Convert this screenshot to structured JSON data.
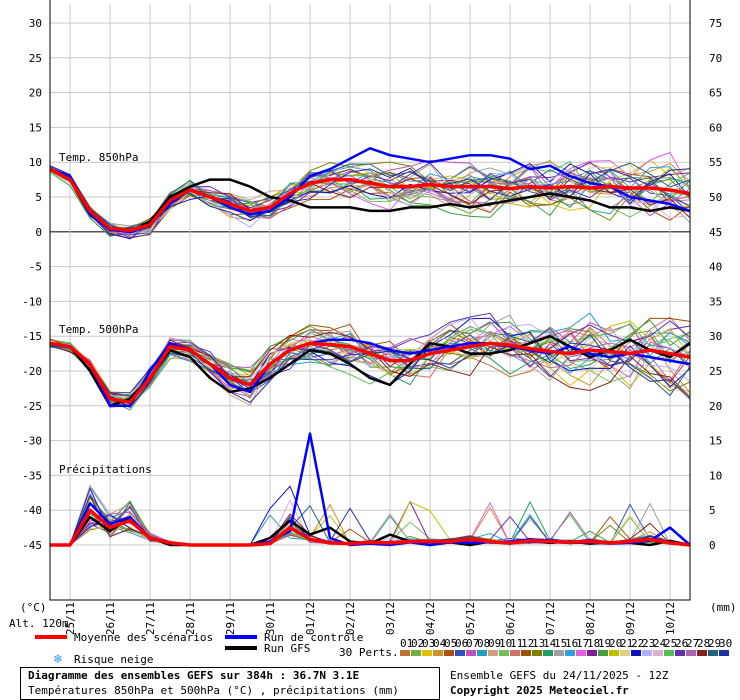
{
  "chart_data": {
    "type": "line",
    "title": "Diagramme des ensembles GEFS sur 384h : 36.7N 3.1E",
    "subtitle": "Températures 850hPa et 500hPa (°C) , précipitations (mm)",
    "left_axis": {
      "unit": "(°C)",
      "ticks": [
        30,
        25,
        20,
        15,
        10,
        5,
        0,
        -5,
        -10,
        -15,
        -20,
        -25,
        -30,
        -35,
        -40,
        -45
      ]
    },
    "right_axis": {
      "unit": "(mm)",
      "ticks": [
        75,
        70,
        65,
        60,
        55,
        50,
        45,
        40,
        35,
        30,
        25,
        20,
        15,
        10,
        5,
        0
      ]
    },
    "dates": [
      "25/11",
      "26/11",
      "27/11",
      "28/11",
      "29/11",
      "30/11",
      "01/12",
      "02/12",
      "03/12",
      "04/12",
      "05/12",
      "06/12",
      "07/12",
      "08/12",
      "09/12",
      "10/12"
    ],
    "altitude": "Alt. 120m",
    "panel_labels": {
      "t850": "Temp. 850hPa",
      "t500": "Temp. 500hPa",
      "precip": "Précipitations"
    },
    "x_hours": [
      0,
      12,
      24,
      36,
      48,
      60,
      72,
      84,
      96,
      108,
      120,
      132,
      144,
      156,
      168,
      180,
      192,
      204,
      216,
      228,
      240,
      252,
      264,
      276,
      288,
      300,
      312,
      324,
      336,
      348,
      360,
      372,
      384
    ],
    "series": [
      {
        "name": "Moyenne des scénarios",
        "t850": [
          9,
          7.5,
          3,
          0.5,
          0.2,
          1,
          4.5,
          6,
          5,
          4,
          3,
          3.5,
          5.5,
          7,
          7.5,
          7.5,
          7,
          6.5,
          6.5,
          6.8,
          6.5,
          6.5,
          6.5,
          6.2,
          6.5,
          6.3,
          6.5,
          6.3,
          6.5,
          6.3,
          6.3,
          6,
          5.5
        ],
        "t500": [
          -16,
          -16.5,
          -19,
          -24,
          -24.5,
          -21,
          -16.5,
          -17,
          -19,
          -21,
          -22,
          -19,
          -17,
          -16,
          -16.2,
          -16.5,
          -17.5,
          -18.5,
          -18.5,
          -17.5,
          -17,
          -16.5,
          -16,
          -16.3,
          -16.8,
          -17.2,
          -17.5,
          -17,
          -17.2,
          -17.5,
          -17,
          -17.5,
          -18
        ],
        "precip": [
          0,
          0,
          5,
          2.5,
          3.5,
          1,
          0.3,
          0,
          0,
          0,
          0,
          0.2,
          2.5,
          0.8,
          0.3,
          0.2,
          0.4,
          0.3,
          0.5,
          0.5,
          0.5,
          0.8,
          0.5,
          0.3,
          0.6,
          0.5,
          0.4,
          0.5,
          0.3,
          0.5,
          0.8,
          0.3,
          0
        ]
      },
      {
        "name": "Run de contrôle",
        "t850": [
          9,
          8,
          2.5,
          0.3,
          0,
          1,
          4,
          6,
          5,
          3.5,
          2.5,
          3,
          5,
          8,
          9,
          10.5,
          12,
          11,
          10.5,
          10,
          10.5,
          11,
          11,
          10.5,
          9,
          9.5,
          8,
          7,
          6.5,
          5,
          4.5,
          4,
          3
        ],
        "t500": [
          -16,
          -16.5,
          -19,
          -25,
          -25,
          -20,
          -16,
          -17,
          -19,
          -22,
          -23,
          -19,
          -17,
          -16,
          -15.5,
          -15.5,
          -16,
          -17,
          -17.5,
          -17,
          -16.5,
          -16,
          -16,
          -16.5,
          -17,
          -17.5,
          -16.5,
          -17.5,
          -18,
          -17.5,
          -18,
          -18.5,
          -19
        ],
        "precip": [
          0,
          0,
          6,
          3,
          4,
          1,
          0.2,
          0,
          0,
          0,
          0,
          0.5,
          2,
          16,
          1,
          0,
          0.2,
          0,
          0.4,
          0,
          0.4,
          0.3,
          0.4,
          0.5,
          0.8,
          0.6,
          0.3,
          0.4,
          0.2,
          0.3,
          0.6,
          2.5,
          0
        ]
      },
      {
        "name": "Run GFS",
        "t850": [
          9,
          7.5,
          2.5,
          0.5,
          0,
          1.5,
          5,
          6.5,
          7.5,
          7.5,
          6.5,
          5,
          4.5,
          3.5,
          3.5,
          3.5,
          3,
          3,
          3.5,
          3.5,
          4,
          3.5,
          4,
          4.5,
          5,
          5.5,
          5,
          4.5,
          3.5,
          3.5,
          3,
          3.5,
          3
        ],
        "t500": [
          -16,
          -16.5,
          -20,
          -25,
          -24,
          -21,
          -17,
          -18,
          -21,
          -23,
          -22.5,
          -21,
          -19,
          -17,
          -17.5,
          -19,
          -21,
          -22,
          -19,
          -16,
          -16.5,
          -17.5,
          -17.5,
          -17,
          -16,
          -15,
          -16.5,
          -18,
          -17,
          -15.5,
          -17,
          -18,
          -16
        ],
        "precip": [
          0,
          0,
          4,
          2,
          4,
          1,
          0,
          0,
          0,
          0,
          0,
          1,
          3.5,
          1.5,
          2.5,
          0.5,
          0.2,
          1.5,
          0.5,
          0,
          0.4,
          0,
          0.5,
          0.2,
          0.8,
          0.3,
          0.5,
          0.2,
          0.4,
          0.3,
          0,
          0.6,
          0
        ]
      }
    ],
    "perturbations": {
      "label": "30 Perts.",
      "count": 30
    },
    "grid": true
  },
  "legend": {
    "mean": "Moyenne des scénarios",
    "control": "Run de contrôle",
    "gfs": "Run GFS",
    "snow": "Risque neige",
    "perts": "30 Perts.",
    "pert_ids": [
      "01",
      "02",
      "03",
      "04",
      "05",
      "06",
      "07",
      "08",
      "09",
      "10",
      "11",
      "12",
      "13",
      "14",
      "15",
      "16",
      "17",
      "18",
      "19",
      "20",
      "21",
      "22",
      "23",
      "24",
      "25",
      "26",
      "27",
      "28",
      "29",
      "30"
    ]
  },
  "colors": {
    "mean": "#ff0000",
    "control": "#0000ff",
    "gfs": "#000000",
    "snow": "#3399ff",
    "perts": [
      "#c07030",
      "#70b040",
      "#e0c000",
      "#d09030",
      "#b05010",
      "#3050c0",
      "#c050c0",
      "#20a0c0",
      "#d0a080",
      "#70c060",
      "#d07070",
      "#a05000",
      "#808000",
      "#20a060",
      "#a0a0a0",
      "#30a0e0",
      "#e060e0",
      "#8020a0",
      "#40a040",
      "#c0c000",
      "#e0d080",
      "#1010c0",
      "#b0b0ff",
      "#e0b0d0",
      "#50c050",
      "#6030b0",
      "#b060b0",
      "#802020",
      "#206080",
      "#2030a0"
    ]
  },
  "footer": {
    "title": "Diagramme des ensembles GEFS sur 384h : 36.7N 3.1E",
    "subtitle": "Températures 850hPa et 500hPa (°C) , précipitations (mm)",
    "run": "Ensemble GEFS du 24/11/2025 - 12Z",
    "copyright": "Copyright 2025 Meteociel.fr"
  }
}
